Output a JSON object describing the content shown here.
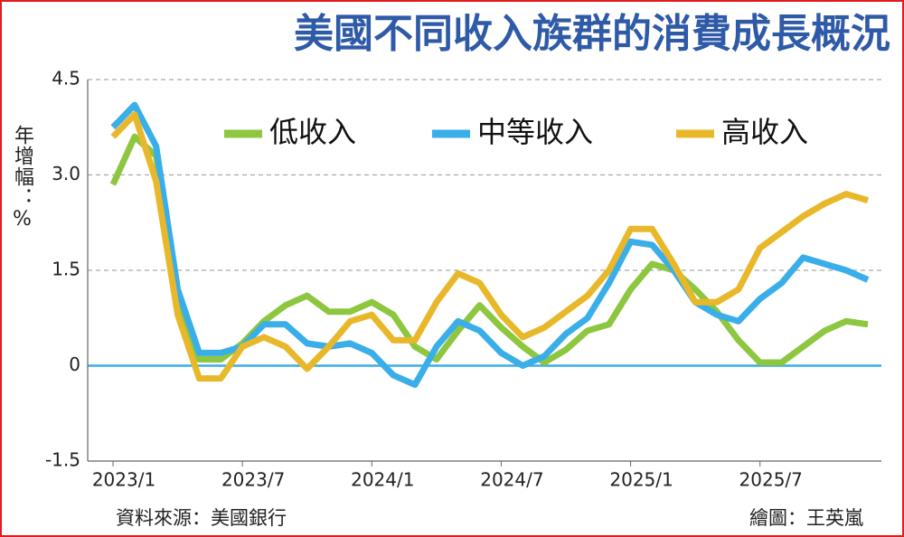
{
  "chart_data": {
    "type": "line",
    "title": "美國不同收入族群的消費成長概況",
    "y_label": "年增幅：%",
    "source": "資料來源：美國銀行",
    "credit": "繪圖：王英嵐",
    "categories": [
      "2023/1",
      null,
      null,
      null,
      null,
      null,
      "2023/7",
      null,
      null,
      null,
      null,
      null,
      "2024/1",
      null,
      null,
      null,
      null,
      null,
      "2024/7",
      null,
      null,
      null,
      null,
      null,
      "2025/1",
      null,
      null,
      null,
      null,
      null,
      "2025/7",
      null,
      null,
      null,
      null,
      null
    ],
    "series": [
      {
        "name": "低收入",
        "color": "#8dc63f",
        "values": [
          2.85,
          3.6,
          3.3,
          1.0,
          0.1,
          0.1,
          0.35,
          0.7,
          0.95,
          1.1,
          0.85,
          0.85,
          1.0,
          0.8,
          0.3,
          0.1,
          0.55,
          0.95,
          0.6,
          0.3,
          0.05,
          0.25,
          0.55,
          0.65,
          1.2,
          1.6,
          1.5,
          1.2,
          0.85,
          0.4,
          0.05,
          0.05,
          0.3,
          0.55,
          0.7,
          0.65
        ]
      },
      {
        "name": "中等收入",
        "color": "#3aaee8",
        "values": [
          3.75,
          4.1,
          3.45,
          1.2,
          0.2,
          0.2,
          0.3,
          0.65,
          0.65,
          0.35,
          0.3,
          0.35,
          0.2,
          -0.15,
          -0.3,
          0.3,
          0.7,
          0.55,
          0.2,
          0.0,
          0.15,
          0.5,
          0.75,
          1.3,
          1.95,
          1.9,
          1.5,
          1.0,
          0.8,
          0.7,
          1.05,
          1.3,
          1.7,
          1.6,
          1.5,
          1.35
        ]
      },
      {
        "name": "高收入",
        "color": "#e8b82a",
        "values": [
          3.6,
          3.95,
          2.9,
          0.8,
          -0.2,
          -0.2,
          0.3,
          0.45,
          0.3,
          -0.05,
          0.3,
          0.7,
          0.8,
          0.4,
          0.4,
          1.0,
          1.45,
          1.3,
          0.8,
          0.45,
          0.6,
          0.85,
          1.1,
          1.5,
          2.15,
          2.15,
          1.6,
          1.0,
          1.0,
          1.2,
          1.85,
          2.1,
          2.35,
          2.55,
          2.7,
          2.6
        ]
      }
    ],
    "ylim": [
      -1.5,
      4.5
    ],
    "yticks": [
      -1.5,
      0,
      1.5,
      {
        "value": 3,
        "label": "3.0"
      },
      4.5
    ],
    "grid": true
  }
}
